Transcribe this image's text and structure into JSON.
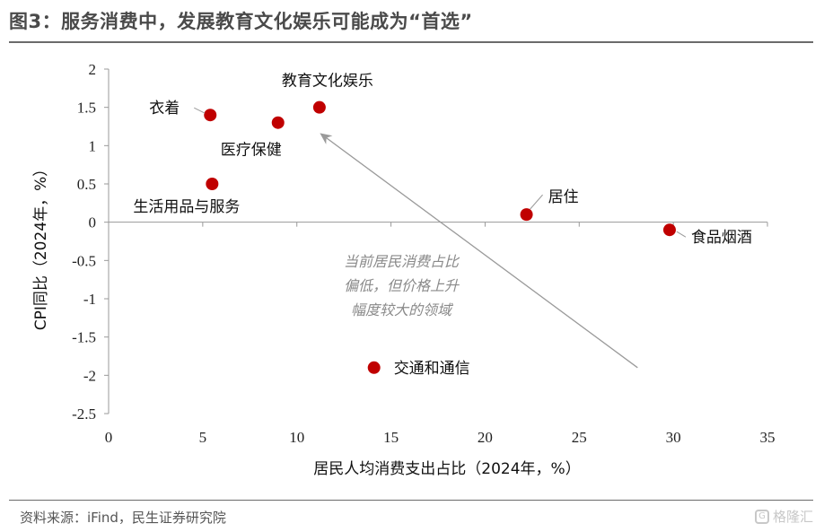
{
  "title": "图3：服务消费中，发展教育文化娱乐可能成为“首选”",
  "source": "资料来源：iFind，民生证券研究院",
  "watermark": "格隆汇",
  "chart_data": {
    "type": "scatter",
    "xlabel": "居民人均消费支出占比（2024年，%）",
    "ylabel": "CPI同比（2024年，%）",
    "xlim": [
      0,
      35
    ],
    "ylim": [
      -2.5,
      2
    ],
    "x_ticks": [
      0,
      5,
      10,
      15,
      20,
      25,
      30,
      35
    ],
    "y_ticks": [
      2,
      1.5,
      1,
      0.5,
      0,
      -0.5,
      -1,
      -1.5,
      -2,
      -2.5
    ],
    "grid": false,
    "marker_color": "#c00000",
    "points": [
      {
        "label": "教育文化娱乐",
        "x": 11.2,
        "y": 1.5
      },
      {
        "label": "衣着",
        "x": 5.4,
        "y": 1.4
      },
      {
        "label": "医疗保健",
        "x": 9.0,
        "y": 1.3
      },
      {
        "label": "生活用品与服务",
        "x": 5.5,
        "y": 0.5
      },
      {
        "label": "居住",
        "x": 22.2,
        "y": 0.1
      },
      {
        "label": "食品烟酒",
        "x": 29.8,
        "y": -0.1
      },
      {
        "label": "交通和通信",
        "x": 14.1,
        "y": -1.9
      }
    ],
    "annotation": {
      "lines": [
        "当前居民消费占比",
        "偏低，但价格上升",
        "幅度较大的领域"
      ],
      "arrow_from": [
        28.1,
        -1.9
      ],
      "arrow_to": [
        11.3,
        1.15
      ]
    }
  }
}
